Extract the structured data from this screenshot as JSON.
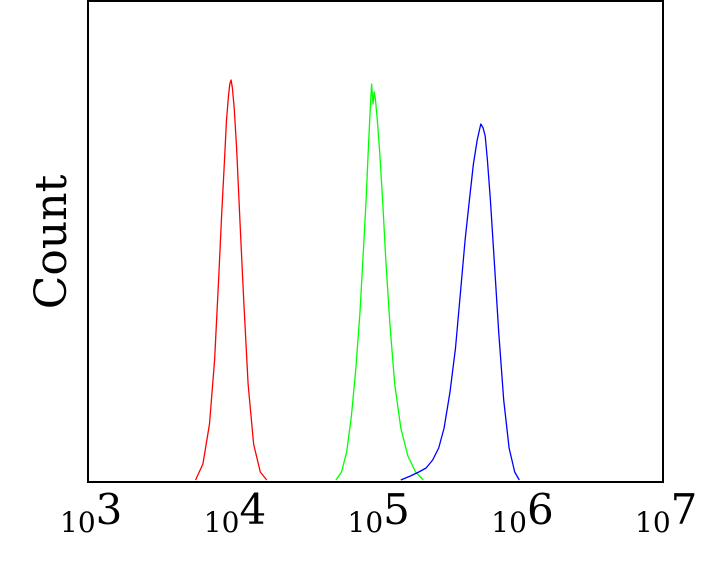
{
  "chart_data": {
    "type": "line",
    "title": "",
    "xlabel": "",
    "ylabel": "Count",
    "x_scale": "log",
    "xlim": [
      1000,
      10000000
    ],
    "ylim": [
      0,
      1
    ],
    "grid": false,
    "legend": "none",
    "x_ticks": [
      {
        "value": 1000,
        "base": "10",
        "exp": "3"
      },
      {
        "value": 10000,
        "base": "10",
        "exp": "4"
      },
      {
        "value": 100000,
        "base": "10",
        "exp": "5"
      },
      {
        "value": 1000000,
        "base": "10",
        "exp": "6"
      },
      {
        "value": 10000000,
        "base": "10",
        "exp": "7"
      }
    ],
    "series": [
      {
        "color": "#ff0000",
        "x": [
          5600,
          6300,
          7000,
          7600,
          8100,
          8500,
          8900,
          9200,
          9500,
          9700,
          9900,
          10100,
          10400,
          10800,
          11400,
          12100,
          13000,
          14200,
          15800,
          17500
        ],
        "y": [
          0,
          0.04,
          0.14,
          0.3,
          0.5,
          0.66,
          0.8,
          0.9,
          0.96,
          0.99,
          1.0,
          0.98,
          0.93,
          0.83,
          0.65,
          0.45,
          0.24,
          0.09,
          0.02,
          0
        ]
      },
      {
        "color": "#00ff00",
        "x": [
          53000,
          58000,
          63000,
          68000,
          73000,
          78000,
          82000,
          86000,
          89000,
          92000,
          94000,
          96000,
          98000,
          100000,
          103000,
          107000,
          112000,
          118000,
          126000,
          136000,
          150000,
          168000,
          190000,
          215000
        ],
        "y": [
          0,
          0.02,
          0.07,
          0.16,
          0.28,
          0.42,
          0.56,
          0.7,
          0.82,
          0.93,
          0.99,
          0.94,
          0.97,
          0.95,
          0.9,
          0.82,
          0.7,
          0.55,
          0.39,
          0.24,
          0.13,
          0.06,
          0.02,
          0
        ]
      },
      {
        "color": "#0000ff",
        "x": [
          150000,
          175000,
          200000,
          225000,
          250000,
          275000,
          300000,
          330000,
          360000,
          390000,
          420000,
          450000,
          480000,
          510000,
          540000,
          560000,
          580000,
          600000,
          630000,
          670000,
          720000,
          780000,
          850000,
          930000,
          1000000
        ],
        "y": [
          0,
          0.01,
          0.02,
          0.03,
          0.05,
          0.08,
          0.13,
          0.22,
          0.33,
          0.47,
          0.6,
          0.7,
          0.79,
          0.85,
          0.89,
          0.88,
          0.86,
          0.8,
          0.7,
          0.55,
          0.37,
          0.2,
          0.08,
          0.02,
          0
        ]
      }
    ]
  }
}
